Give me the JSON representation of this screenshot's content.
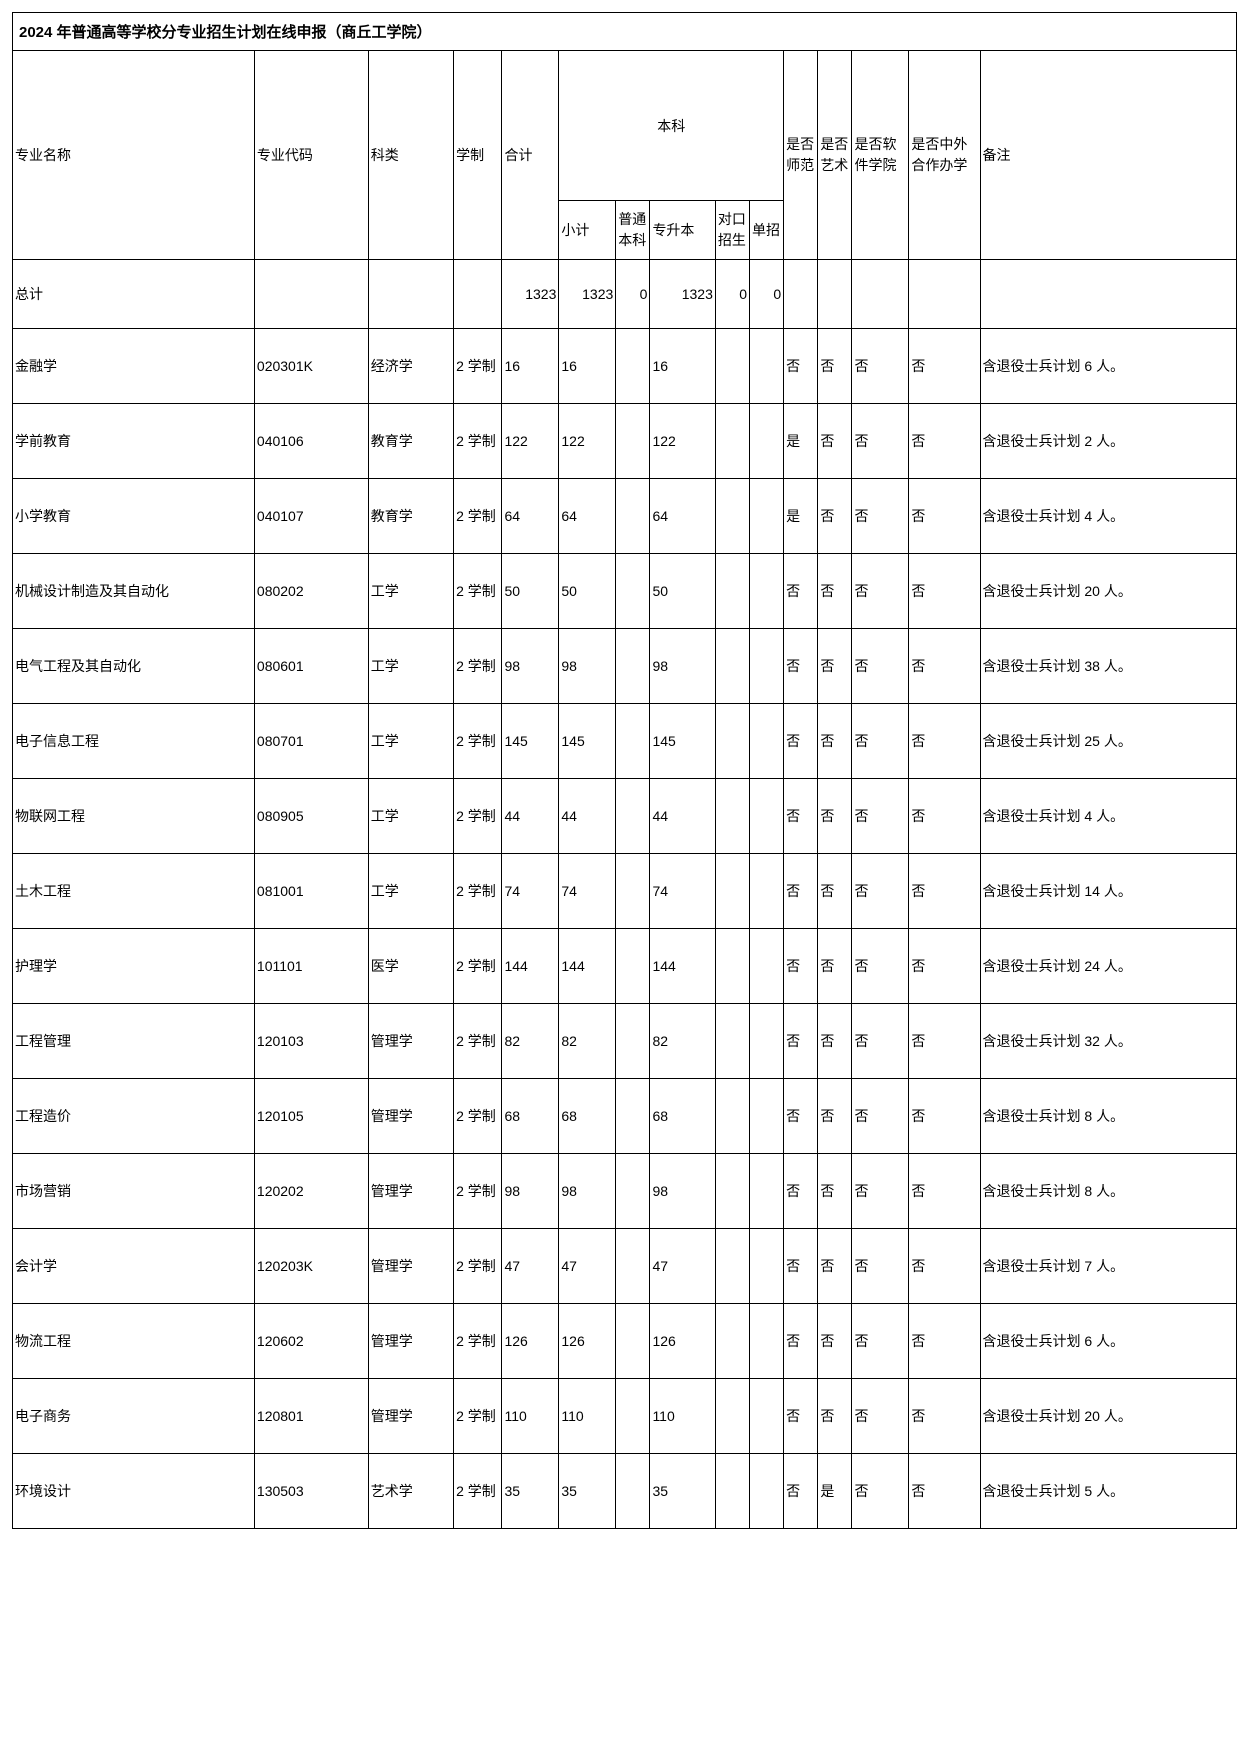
{
  "title": "2024 年普通高等学校分专业招生计划在线申报（商丘工学院）",
  "headers": {
    "name": "专业名称",
    "code": "专业代码",
    "category": "科类",
    "years": "学制",
    "total": "合计",
    "undergrad_group": "本科",
    "subtotal": "小计",
    "ptbk": "普通本科",
    "zsb": "专升本",
    "dkzs": "对口招生",
    "dz": "单招",
    "shifan": "是否师范",
    "yishu": "是否艺术",
    "ruanjian": "是否软件学院",
    "zhongwai": "是否中外合作办学",
    "notes": "备注"
  },
  "totals": {
    "label": "总计",
    "total": "1323",
    "subtotal": "1323",
    "ptbk": "0",
    "zsb": "1323",
    "dkzs": "0",
    "dz": "0"
  },
  "rows": [
    {
      "name": "金融学",
      "code": "020301K",
      "category": "经济学",
      "years": "2 学制",
      "total": "16",
      "subtotal": "16",
      "ptbk": "",
      "zsb": "16",
      "dkzs": "",
      "dz": "",
      "shifan": "否",
      "yishu": "否",
      "ruanjian": "否",
      "zhongwai": "否",
      "notes": "含退役士兵计划 6 人。"
    },
    {
      "name": "学前教育",
      "code": "040106",
      "category": "教育学",
      "years": "2 学制",
      "total": "122",
      "subtotal": "122",
      "ptbk": "",
      "zsb": "122",
      "dkzs": "",
      "dz": "",
      "shifan": "是",
      "yishu": "否",
      "ruanjian": "否",
      "zhongwai": "否",
      "notes": "含退役士兵计划 2 人。"
    },
    {
      "name": "小学教育",
      "code": "040107",
      "category": "教育学",
      "years": "2 学制",
      "total": "64",
      "subtotal": "64",
      "ptbk": "",
      "zsb": "64",
      "dkzs": "",
      "dz": "",
      "shifan": "是",
      "yishu": "否",
      "ruanjian": "否",
      "zhongwai": "否",
      "notes": "含退役士兵计划 4 人。"
    },
    {
      "name": "机械设计制造及其自动化",
      "code": "080202",
      "category": "工学",
      "years": "2 学制",
      "total": "50",
      "subtotal": "50",
      "ptbk": "",
      "zsb": "50",
      "dkzs": "",
      "dz": "",
      "shifan": "否",
      "yishu": "否",
      "ruanjian": "否",
      "zhongwai": "否",
      "notes": "含退役士兵计划 20 人。"
    },
    {
      "name": "电气工程及其自动化",
      "code": "080601",
      "category": "工学",
      "years": "2 学制",
      "total": "98",
      "subtotal": "98",
      "ptbk": "",
      "zsb": "98",
      "dkzs": "",
      "dz": "",
      "shifan": "否",
      "yishu": "否",
      "ruanjian": "否",
      "zhongwai": "否",
      "notes": "含退役士兵计划 38 人。"
    },
    {
      "name": "电子信息工程",
      "code": "080701",
      "category": "工学",
      "years": "2 学制",
      "total": "145",
      "subtotal": "145",
      "ptbk": "",
      "zsb": "145",
      "dkzs": "",
      "dz": "",
      "shifan": "否",
      "yishu": "否",
      "ruanjian": "否",
      "zhongwai": "否",
      "notes": "含退役士兵计划 25 人。"
    },
    {
      "name": "物联网工程",
      "code": "080905",
      "category": "工学",
      "years": "2 学制",
      "total": "44",
      "subtotal": "44",
      "ptbk": "",
      "zsb": "44",
      "dkzs": "",
      "dz": "",
      "shifan": "否",
      "yishu": "否",
      "ruanjian": "否",
      "zhongwai": "否",
      "notes": "含退役士兵计划 4 人。"
    },
    {
      "name": "土木工程",
      "code": "081001",
      "category": "工学",
      "years": "2 学制",
      "total": "74",
      "subtotal": "74",
      "ptbk": "",
      "zsb": "74",
      "dkzs": "",
      "dz": "",
      "shifan": "否",
      "yishu": "否",
      "ruanjian": "否",
      "zhongwai": "否",
      "notes": "含退役士兵计划 14 人。"
    },
    {
      "name": "护理学",
      "code": "101101",
      "category": "医学",
      "years": "2 学制",
      "total": "144",
      "subtotal": "144",
      "ptbk": "",
      "zsb": "144",
      "dkzs": "",
      "dz": "",
      "shifan": "否",
      "yishu": "否",
      "ruanjian": "否",
      "zhongwai": "否",
      "notes": "含退役士兵计划 24 人。"
    },
    {
      "name": "工程管理",
      "code": "120103",
      "category": "管理学",
      "years": "2 学制",
      "total": "82",
      "subtotal": "82",
      "ptbk": "",
      "zsb": "82",
      "dkzs": "",
      "dz": "",
      "shifan": "否",
      "yishu": "否",
      "ruanjian": "否",
      "zhongwai": "否",
      "notes": "含退役士兵计划 32 人。"
    },
    {
      "name": "工程造价",
      "code": "120105",
      "category": "管理学",
      "years": "2 学制",
      "total": "68",
      "subtotal": "68",
      "ptbk": "",
      "zsb": "68",
      "dkzs": "",
      "dz": "",
      "shifan": "否",
      "yishu": "否",
      "ruanjian": "否",
      "zhongwai": "否",
      "notes": "含退役士兵计划 8 人。"
    },
    {
      "name": "市场营销",
      "code": "120202",
      "category": "管理学",
      "years": "2 学制",
      "total": "98",
      "subtotal": "98",
      "ptbk": "",
      "zsb": "98",
      "dkzs": "",
      "dz": "",
      "shifan": "否",
      "yishu": "否",
      "ruanjian": "否",
      "zhongwai": "否",
      "notes": "含退役士兵计划 8 人。"
    },
    {
      "name": "会计学",
      "code": "120203K",
      "category": "管理学",
      "years": "2 学制",
      "total": "47",
      "subtotal": "47",
      "ptbk": "",
      "zsb": "47",
      "dkzs": "",
      "dz": "",
      "shifan": "否",
      "yishu": "否",
      "ruanjian": "否",
      "zhongwai": "否",
      "notes": "含退役士兵计划 7 人。"
    },
    {
      "name": "物流工程",
      "code": "120602",
      "category": "管理学",
      "years": "2 学制",
      "total": "126",
      "subtotal": "126",
      "ptbk": "",
      "zsb": "126",
      "dkzs": "",
      "dz": "",
      "shifan": "否",
      "yishu": "否",
      "ruanjian": "否",
      "zhongwai": "否",
      "notes": "含退役士兵计划 6 人。"
    },
    {
      "name": "电子商务",
      "code": "120801",
      "category": "管理学",
      "years": "2 学制",
      "total": "110",
      "subtotal": "110",
      "ptbk": "",
      "zsb": "110",
      "dkzs": "",
      "dz": "",
      "shifan": "否",
      "yishu": "否",
      "ruanjian": "否",
      "zhongwai": "否",
      "notes": "含退役士兵计划 20 人。"
    },
    {
      "name": "环境设计",
      "code": "130503",
      "category": "艺术学",
      "years": "2 学制",
      "total": "35",
      "subtotal": "35",
      "ptbk": "",
      "zsb": "35",
      "dkzs": "",
      "dz": "",
      "shifan": "否",
      "yishu": "是",
      "ruanjian": "否",
      "zhongwai": "否",
      "notes": "含退役士兵计划 5 人。"
    }
  ],
  "style": {
    "border_color": "#000000",
    "bg_color": "#ffffff",
    "text_color": "#000000",
    "font_size_body": 14,
    "font_size_title": 15
  }
}
